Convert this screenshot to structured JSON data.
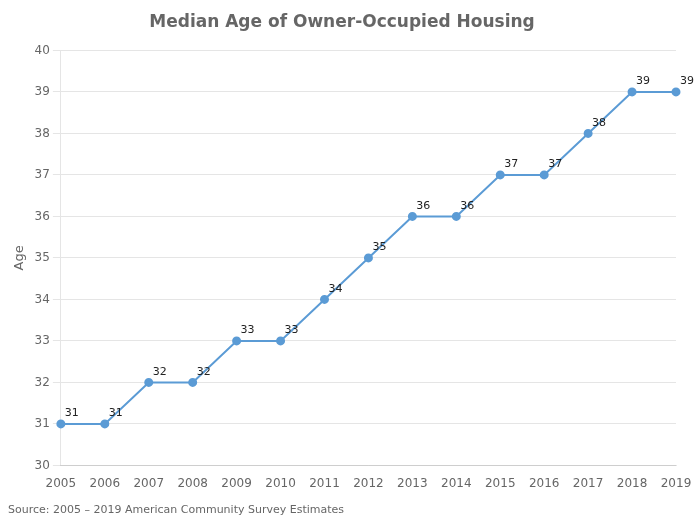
{
  "chart_data": {
    "type": "line",
    "title": "Median Age of Owner-Occupied Housing",
    "categories": [
      "2005",
      "2006",
      "2007",
      "2008",
      "2009",
      "2010",
      "2011",
      "2012",
      "2013",
      "2014",
      "2015",
      "2016",
      "2017",
      "2018",
      "2019"
    ],
    "values": [
      31,
      31,
      32,
      32,
      33,
      33,
      34,
      35,
      36,
      36,
      37,
      37,
      38,
      39,
      39
    ],
    "color": "#5B9BD5",
    "marker": "circle",
    "ylabel": "Age",
    "ylim": [
      30,
      40
    ],
    "yticks": [
      30,
      31,
      32,
      33,
      34,
      35,
      36,
      37,
      38,
      39,
      40
    ],
    "grid": true,
    "data_labels": true,
    "annotations": [
      "Source: 2005 – 2019 American Community Survey Estimates"
    ]
  }
}
